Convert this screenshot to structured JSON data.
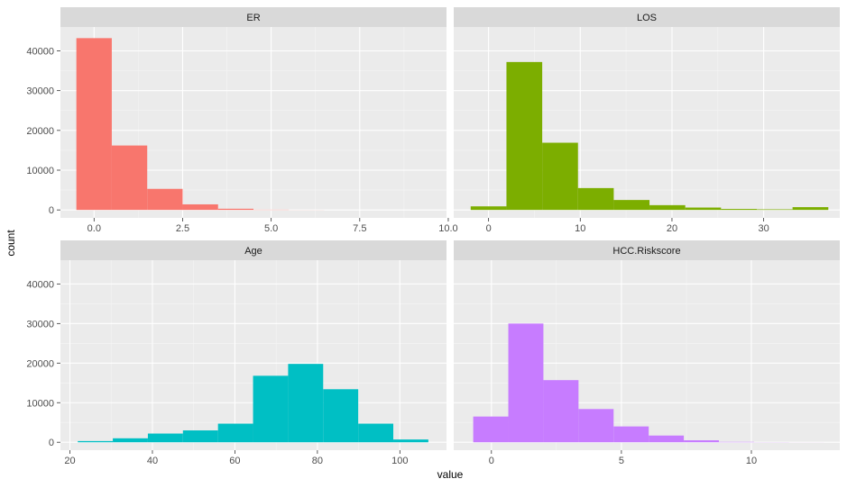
{
  "chart_data": {
    "type": "bar",
    "xlabel": "value",
    "ylabel": "count",
    "grid": true,
    "shared_y": true,
    "ylim": [
      -2000,
      46000
    ],
    "y_ticks": [
      0,
      10000,
      20000,
      30000,
      40000
    ],
    "y_tick_labels": [
      "0",
      "10000",
      "20000",
      "30000",
      "40000"
    ],
    "panels": [
      {
        "title": "ER",
        "color": "#F8766D",
        "xlim": [
          -0.95,
          9.95
        ],
        "x_ticks": [
          0,
          2.5,
          5,
          7.5,
          10
        ],
        "x_tick_labels": [
          "0.0",
          "2.5",
          "5.0",
          "7.5",
          "10.0"
        ],
        "bins": [
          {
            "x0": -0.5,
            "x1": 0.5,
            "count": 43200
          },
          {
            "x0": 0.5,
            "x1": 1.5,
            "count": 16200
          },
          {
            "x0": 1.5,
            "x1": 2.5,
            "count": 5300
          },
          {
            "x0": 2.5,
            "x1": 3.5,
            "count": 1400
          },
          {
            "x0": 3.5,
            "x1": 4.5,
            "count": 300
          },
          {
            "x0": 4.5,
            "x1": 5.5,
            "count": 60
          },
          {
            "x0": 5.5,
            "x1": 6.5,
            "count": 15
          }
        ]
      },
      {
        "title": "LOS",
        "color": "#7CAE00",
        "xlim": [
          -3.8,
          38.3
        ],
        "x_ticks": [
          0,
          10,
          20,
          30
        ],
        "x_tick_labels": [
          "0",
          "10",
          "20",
          "30"
        ],
        "bins": [
          {
            "x0": -1.95,
            "x1": 1.95,
            "count": 900
          },
          {
            "x0": 1.95,
            "x1": 5.85,
            "count": 37200
          },
          {
            "x0": 5.85,
            "x1": 9.75,
            "count": 16900
          },
          {
            "x0": 9.75,
            "x1": 13.65,
            "count": 5500
          },
          {
            "x0": 13.65,
            "x1": 17.55,
            "count": 2500
          },
          {
            "x0": 17.55,
            "x1": 21.45,
            "count": 1200
          },
          {
            "x0": 21.45,
            "x1": 25.35,
            "count": 600
          },
          {
            "x0": 25.35,
            "x1": 29.25,
            "count": 250
          },
          {
            "x0": 29.25,
            "x1": 33.15,
            "count": 150
          },
          {
            "x0": 33.15,
            "x1": 37.05,
            "count": 700
          }
        ]
      },
      {
        "title": "Age",
        "color": "#00BFC4",
        "xlim": [
          17.7,
          111.3
        ],
        "x_ticks": [
          20,
          40,
          60,
          80,
          100
        ],
        "x_tick_labels": [
          "20",
          "40",
          "60",
          "80",
          "100"
        ],
        "bins": [
          {
            "x0": 21.9,
            "x1": 30.4,
            "count": 300
          },
          {
            "x0": 30.4,
            "x1": 38.9,
            "count": 1000
          },
          {
            "x0": 38.9,
            "x1": 47.4,
            "count": 2200
          },
          {
            "x0": 47.4,
            "x1": 55.9,
            "count": 3000
          },
          {
            "x0": 55.9,
            "x1": 64.4,
            "count": 4700
          },
          {
            "x0": 64.4,
            "x1": 72.9,
            "count": 16800
          },
          {
            "x0": 72.9,
            "x1": 81.4,
            "count": 19800
          },
          {
            "x0": 81.4,
            "x1": 89.9,
            "count": 13400
          },
          {
            "x0": 89.9,
            "x1": 98.4,
            "count": 4700
          },
          {
            "x0": 98.4,
            "x1": 106.9,
            "count": 700
          }
        ]
      },
      {
        "title": "HCC.Riskscore",
        "color": "#C77CFF",
        "xlim": [
          -1.45,
          13.4
        ],
        "x_ticks": [
          0,
          5,
          10
        ],
        "x_tick_labels": [
          "0",
          "5",
          "10"
        ],
        "bins": [
          {
            "x0": -0.7,
            "x1": 0.65,
            "count": 6500
          },
          {
            "x0": 0.65,
            "x1": 2.0,
            "count": 30000
          },
          {
            "x0": 2.0,
            "x1": 3.35,
            "count": 15700
          },
          {
            "x0": 3.35,
            "x1": 4.7,
            "count": 8400
          },
          {
            "x0": 4.7,
            "x1": 6.05,
            "count": 4000
          },
          {
            "x0": 6.05,
            "x1": 7.4,
            "count": 1700
          },
          {
            "x0": 7.4,
            "x1": 8.75,
            "count": 500
          },
          {
            "x0": 8.75,
            "x1": 10.1,
            "count": 100
          },
          {
            "x0": 10.1,
            "x1": 11.45,
            "count": 30
          },
          {
            "x0": 11.45,
            "x1": 12.8,
            "count": 10
          }
        ]
      }
    ]
  }
}
